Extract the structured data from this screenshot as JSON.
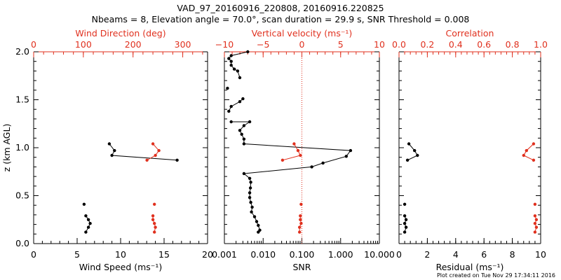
{
  "header": {
    "title": "VAD_97_20160916_220808, 20160916.220825",
    "subtitle": "Nbeams = 8, Elevation angle = 70.0°, scan duration = 29.9 s, SNR Threshold = 0.008"
  },
  "footer": {
    "credit": "Plot created on Tue Nov 29 17:34:11 2016"
  },
  "colors": {
    "primary": "#000000",
    "secondary": "#e0301e"
  },
  "chart_data": [
    {
      "type": "line",
      "ylabel": "z (km AGL)",
      "ylim": [
        0,
        2
      ],
      "yticks": [
        "0.0",
        "0.5",
        "1.0",
        "1.5",
        "2.0"
      ],
      "bottom_axis": {
        "label": "Wind Speed",
        "unit": "(ms⁻¹)",
        "range": [
          0,
          20
        ],
        "ticks": [
          "0",
          "5",
          "10",
          "15",
          "20"
        ]
      },
      "top_axis": {
        "label": "Wind Direction (deg)",
        "range": [
          0,
          350
        ],
        "ticks": [
          "0",
          "100",
          "200",
          "300"
        ]
      },
      "series": [
        {
          "axis": "bottom",
          "color": "#000000",
          "segments": [
            [
              {
                "x": 6.0,
                "y": 0.12
              },
              {
                "x": 6.3,
                "y": 0.17
              },
              {
                "x": 6.5,
                "y": 0.21
              },
              {
                "x": 6.3,
                "y": 0.25
              },
              {
                "x": 6.0,
                "y": 0.29
              }
            ],
            [
              {
                "x": 5.8,
                "y": 0.41
              }
            ],
            [
              {
                "x": 16.5,
                "y": 0.87
              },
              {
                "x": 9.0,
                "y": 0.92
              },
              {
                "x": 9.3,
                "y": 0.97
              },
              {
                "x": 8.7,
                "y": 1.04
              }
            ]
          ]
        },
        {
          "axis": "top",
          "color": "#e0301e",
          "segments": [
            [
              {
                "x": 243,
                "y": 0.12
              },
              {
                "x": 245,
                "y": 0.17
              },
              {
                "x": 243,
                "y": 0.21
              },
              {
                "x": 240,
                "y": 0.25
              },
              {
                "x": 240,
                "y": 0.29
              }
            ],
            [
              {
                "x": 243,
                "y": 0.41
              }
            ],
            [
              {
                "x": 228,
                "y": 0.87
              },
              {
                "x": 245,
                "y": 0.92
              },
              {
                "x": 252,
                "y": 0.97
              },
              {
                "x": 240,
                "y": 1.04
              }
            ]
          ]
        }
      ]
    },
    {
      "type": "line",
      "ylim": [
        0,
        2
      ],
      "bottom_axis": {
        "label": "SNR",
        "scale": "log",
        "range": [
          0.001,
          10
        ],
        "ticks": [
          "0.001",
          "0.010",
          "0.100",
          "1.000",
          "10.000"
        ]
      },
      "top_axis": {
        "label": "Vertical velocity",
        "unit": "(ms⁻¹)",
        "range": [
          -10,
          10
        ],
        "ticks": [
          "−10",
          "−5",
          "0",
          "5",
          "10"
        ]
      },
      "reference_line": {
        "axis": "bottom",
        "x": 0.1,
        "style": "dotted",
        "color": "#e0301e"
      },
      "series": [
        {
          "axis": "bottom",
          "color": "#000000",
          "segments": [
            [
              {
                "x": 0.0075,
                "y": 0.12
              },
              {
                "x": 0.0082,
                "y": 0.14
              },
              {
                "x": 0.0075,
                "y": 0.19
              },
              {
                "x": 0.0068,
                "y": 0.23
              },
              {
                "x": 0.006,
                "y": 0.28
              },
              {
                "x": 0.005,
                "y": 0.33
              },
              {
                "x": 0.0052,
                "y": 0.38
              },
              {
                "x": 0.0048,
                "y": 0.43
              },
              {
                "x": 0.0045,
                "y": 0.48
              },
              {
                "x": 0.0045,
                "y": 0.53
              },
              {
                "x": 0.0047,
                "y": 0.58
              },
              {
                "x": 0.0048,
                "y": 0.64
              },
              {
                "x": 0.0045,
                "y": 0.68
              },
              {
                "x": 0.0032,
                "y": 0.73
              },
              {
                "x": 0.18,
                "y": 0.8
              },
              {
                "x": 0.35,
                "y": 0.84
              },
              {
                "x": 1.4,
                "y": 0.91
              },
              {
                "x": 1.8,
                "y": 0.97
              },
              {
                "x": 0.0032,
                "y": 1.04
              },
              {
                "x": 0.0032,
                "y": 1.09
              },
              {
                "x": 0.0028,
                "y": 1.14
              },
              {
                "x": 0.0025,
                "y": 1.18
              },
              {
                "x": 0.0032,
                "y": 1.23
              },
              {
                "x": 0.0045,
                "y": 1.27
              },
              {
                "x": 0.0015,
                "y": 1.27
              }
            ],
            [
              {
                "x": 0.0013,
                "y": 1.38
              },
              {
                "x": 0.0015,
                "y": 1.43
              },
              {
                "x": 0.0025,
                "y": 1.48
              },
              {
                "x": 0.003,
                "y": 1.51
              }
            ],
            [
              {
                "x": 0.0012,
                "y": 1.62
              }
            ],
            [
              {
                "x": 0.0025,
                "y": 1.73
              },
              {
                "x": 0.0022,
                "y": 1.8
              },
              {
                "x": 0.0018,
                "y": 1.82
              },
              {
                "x": 0.0015,
                "y": 1.86
              },
              {
                "x": 0.0015,
                "y": 1.9
              },
              {
                "x": 0.0013,
                "y": 1.93
              },
              {
                "x": 0.0015,
                "y": 1.96
              },
              {
                "x": 0.004,
                "y": 2.0
              }
            ]
          ]
        },
        {
          "axis": "top",
          "color": "#e0301e",
          "segments": [
            [
              {
                "x": -0.3,
                "y": 0.12
              },
              {
                "x": -0.3,
                "y": 0.17
              },
              {
                "x": -0.1,
                "y": 0.21
              },
              {
                "x": -0.2,
                "y": 0.25
              },
              {
                "x": -0.2,
                "y": 0.29
              }
            ],
            [
              {
                "x": -0.1,
                "y": 0.41
              }
            ],
            [
              {
                "x": -2.5,
                "y": 0.87
              },
              {
                "x": -0.2,
                "y": 0.92
              },
              {
                "x": -0.5,
                "y": 0.97
              },
              {
                "x": -1.0,
                "y": 1.04
              }
            ]
          ]
        }
      ]
    },
    {
      "type": "line",
      "ylim": [
        0,
        2
      ],
      "bottom_axis": {
        "label": "Residual",
        "unit": "(ms⁻¹)",
        "range": [
          0,
          10
        ],
        "ticks": [
          "0",
          "2",
          "4",
          "6",
          "8",
          "10"
        ]
      },
      "top_axis": {
        "label": "Correlation",
        "range": [
          0,
          1
        ],
        "ticks": [
          "0.0",
          "0.2",
          "0.4",
          "0.6",
          "0.8",
          "1.0"
        ]
      },
      "series": [
        {
          "axis": "bottom",
          "color": "#000000",
          "segments": [
            [
              {
                "x": 0.4,
                "y": 0.12
              },
              {
                "x": 0.5,
                "y": 0.17
              },
              {
                "x": 0.4,
                "y": 0.21
              },
              {
                "x": 0.5,
                "y": 0.25
              },
              {
                "x": 0.4,
                "y": 0.29
              }
            ],
            [
              {
                "x": 0.4,
                "y": 0.41
              }
            ],
            [
              {
                "x": 0.6,
                "y": 0.87
              },
              {
                "x": 1.3,
                "y": 0.92
              },
              {
                "x": 1.1,
                "y": 0.97
              },
              {
                "x": 0.7,
                "y": 1.04
              }
            ]
          ]
        },
        {
          "axis": "top",
          "color": "#e0301e",
          "segments": [
            [
              {
                "x": 0.96,
                "y": 0.12
              },
              {
                "x": 0.97,
                "y": 0.17
              },
              {
                "x": 0.96,
                "y": 0.21
              },
              {
                "x": 0.97,
                "y": 0.25
              },
              {
                "x": 0.96,
                "y": 0.29
              }
            ],
            [
              {
                "x": 0.96,
                "y": 0.41
              }
            ],
            [
              {
                "x": 0.95,
                "y": 0.87
              },
              {
                "x": 0.88,
                "y": 0.92
              },
              {
                "x": 0.9,
                "y": 0.97
              },
              {
                "x": 0.95,
                "y": 1.04
              }
            ]
          ]
        }
      ]
    }
  ]
}
